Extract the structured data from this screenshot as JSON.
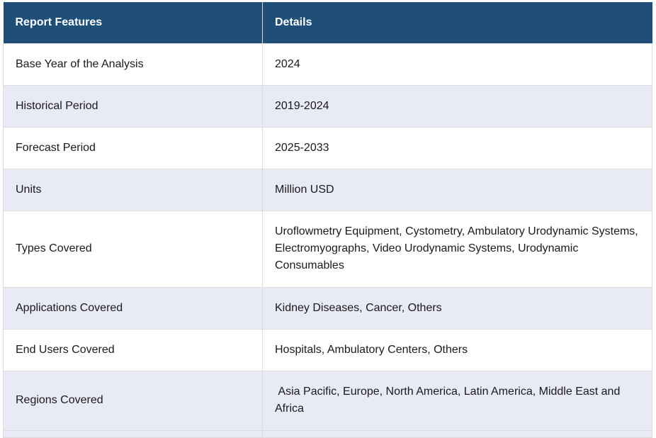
{
  "table": {
    "headers": [
      "Report Features",
      "Details"
    ],
    "rows": [
      {
        "feature": "Base Year of the Analysis",
        "details": "2024"
      },
      {
        "feature": "Historical Period",
        "details": "2019-2024"
      },
      {
        "feature": "Forecast Period",
        "details": "2025-2033"
      },
      {
        "feature": "Units",
        "details": "Million USD"
      },
      {
        "feature": "Types Covered",
        "details": "Uroflowmetry Equipment, Cystometry, Ambulatory Urodynamic Systems, Electromyographs, Video Urodynamic Systems, Urodynamic Consumables"
      },
      {
        "feature": "Applications Covered",
        "details": "Kidney Diseases, Cancer, Others"
      },
      {
        "feature": "End Users Covered",
        "details": "Hospitals, Ambulatory Centers, Others"
      },
      {
        "feature": "Regions Covered",
        "details": " Asia Pacific, Europe, North America, Latin America, Middle East and Africa"
      }
    ]
  },
  "colors": {
    "header_background": "#1f4e79",
    "header_text": "#ffffff",
    "row_alt_background": "#e8eaf6",
    "row_background": "#ffffff"
  }
}
